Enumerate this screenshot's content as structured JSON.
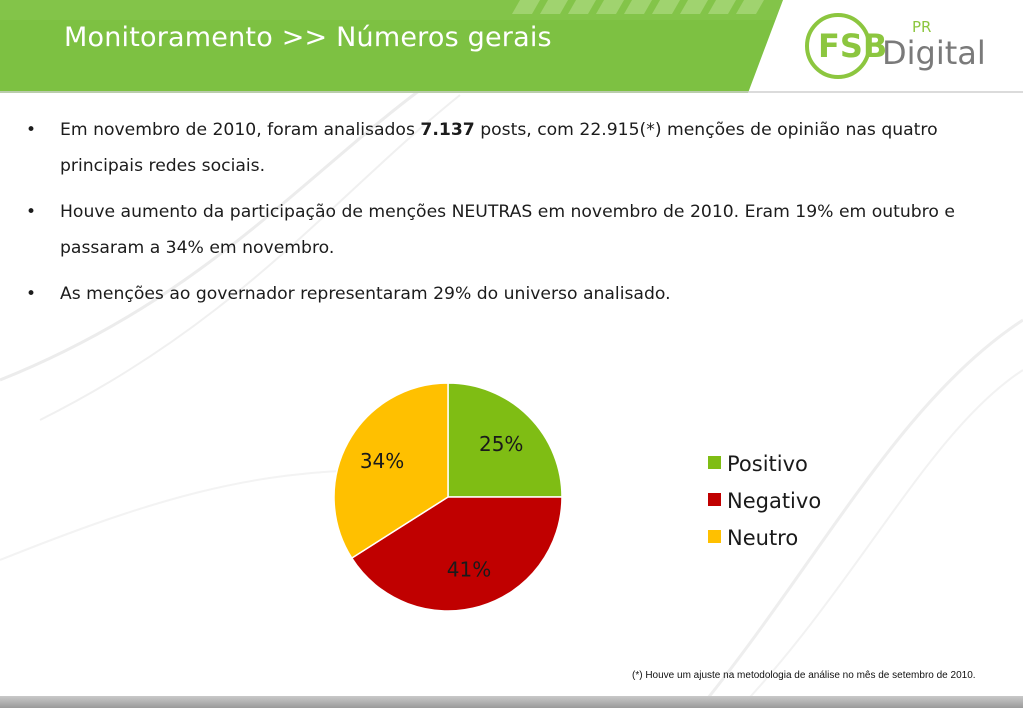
{
  "header": {
    "title": "Monitoramento >> Números gerais",
    "logo_main": "FSB",
    "logo_pr": "PR",
    "logo_digital": "Digital"
  },
  "bullets": [
    {
      "pre": "Em novembro de 2010, foram analisados ",
      "bold": "7.137",
      "post": " posts, com 22.915(*) menções de opinião nas quatro principais redes sociais."
    },
    {
      "pre": "Houve aumento da participação de menções NEUTRAS em novembro de 2010. Eram 19% em outubro e passaram a 34% em novembro.",
      "bold": "",
      "post": ""
    },
    {
      "pre": "As menções ao governador representaram 29% do universo analisado.",
      "bold": "",
      "post": ""
    }
  ],
  "bullet_symbol": "•",
  "chart_data": {
    "type": "pie",
    "categories": [
      "Positivo",
      "Negativo",
      "Neutro"
    ],
    "values": [
      25,
      41,
      34
    ],
    "labels": [
      "25%",
      "41%",
      "34%"
    ],
    "colors": [
      "#7fbd14",
      "#c00000",
      "#ffc000"
    ],
    "legend_position": "right"
  },
  "footnote": "(*) Houve um ajuste na metodologia de análise no mês de setembro de 2010.",
  "colors": {
    "header_green": "#7dc142",
    "logo_green": "#8cc63f",
    "logo_gray": "#7a7a7a"
  }
}
